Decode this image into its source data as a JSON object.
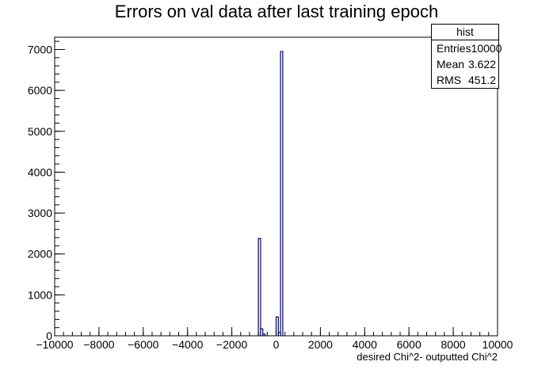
{
  "chart_data": {
    "type": "bar",
    "title": "Errors on val data after last training epoch",
    "xlabel": "desired Chi^2- outputted Chi^2",
    "ylabel": "",
    "xlim": [
      -10000,
      10000
    ],
    "ylim": [
      0,
      7300
    ],
    "xticks": [
      "−10000",
      "−8000",
      "−6000",
      "−4000",
      "−2000",
      "0",
      "2000",
      "4000",
      "6000",
      "8000",
      "10000"
    ],
    "yticks": [
      "0",
      "1000",
      "2000",
      "3000",
      "4000",
      "5000",
      "6000",
      "7000"
    ],
    "bin_width": 100,
    "bins": [
      {
        "x0": -800,
        "x1": -700,
        "value": 2380
      },
      {
        "x0": -700,
        "x1": -600,
        "value": 170
      },
      {
        "x0": -600,
        "x1": -500,
        "value": 40
      },
      {
        "x0": 0,
        "x1": 100,
        "value": 460
      },
      {
        "x0": 100,
        "x1": 200,
        "value": 80
      },
      {
        "x0": 200,
        "x1": 300,
        "value": 6950
      }
    ],
    "line_color": "#000080",
    "stats": {
      "title": "hist",
      "rows": [
        {
          "label": "Entries",
          "value": "10000"
        },
        {
          "label": "Mean",
          "value": "3.622"
        },
        {
          "label": "RMS",
          "value": "451.2"
        }
      ]
    }
  }
}
